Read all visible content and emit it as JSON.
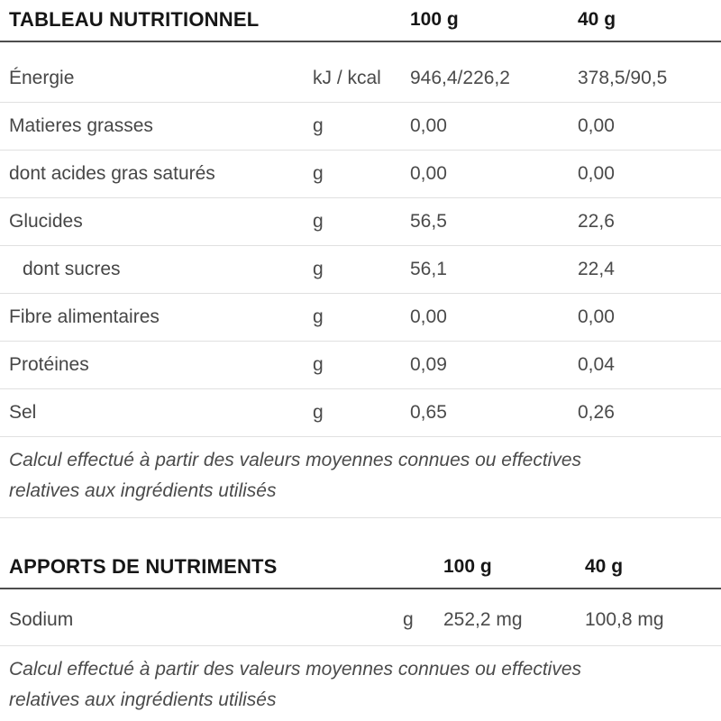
{
  "nutrition_table": {
    "title": "TABLEAU NUTRITIONNEL",
    "col_100g": "100 g",
    "col_40g": "40 g",
    "rows": [
      {
        "label": "Énergie",
        "unit": "kJ / kcal",
        "per_100g": "946,4/226,2",
        "per_40g": "378,5/90,5"
      },
      {
        "label": "Matieres grasses",
        "unit": "g",
        "per_100g": "0,00",
        "per_40g": "0,00"
      },
      {
        "label": "dont acides gras saturés",
        "unit": "g",
        "per_100g": "0,00",
        "per_40g": "0,00"
      },
      {
        "label": "Glucides",
        "unit": "g",
        "per_100g": "56,5",
        "per_40g": "22,6"
      },
      {
        "label": "dont sucres",
        "unit": "g",
        "per_100g": "56,1",
        "per_40g": "22,4"
      },
      {
        "label": "Fibre alimentaires",
        "unit": "g",
        "per_100g": "0,00",
        "per_40g": "0,00"
      },
      {
        "label": "Protéines",
        "unit": "g",
        "per_100g": "0,09",
        "per_40g": "0,04"
      },
      {
        "label": "Sel",
        "unit": "g",
        "per_100g": "0,65",
        "per_40g": "0,26"
      }
    ],
    "footnote": {
      "line1": "Calcul effectué à partir des valeurs moyennes connues ou effectives",
      "line2": "relatives aux ingrédients utilisés"
    }
  },
  "nutrient_table": {
    "title": "APPORTS DE NUTRIMENTS",
    "col_100g": "100 g",
    "col_40g": "40 g",
    "rows": [
      {
        "label": "Sodium",
        "unit": "g",
        "per_100g": "252,2 mg",
        "per_40g": "100,8 mg"
      }
    ],
    "footnote": {
      "line1": "Calcul effectué à partir des valeurs moyennes connues ou effectives",
      "line2": "relatives aux ingrédients utilisés"
    }
  },
  "colors": {
    "header_text": "#161616",
    "body_text": "#464646",
    "dark_rule": "#4d4d4d",
    "light_divider": "#e0e0e0",
    "background": "#ffffff"
  }
}
